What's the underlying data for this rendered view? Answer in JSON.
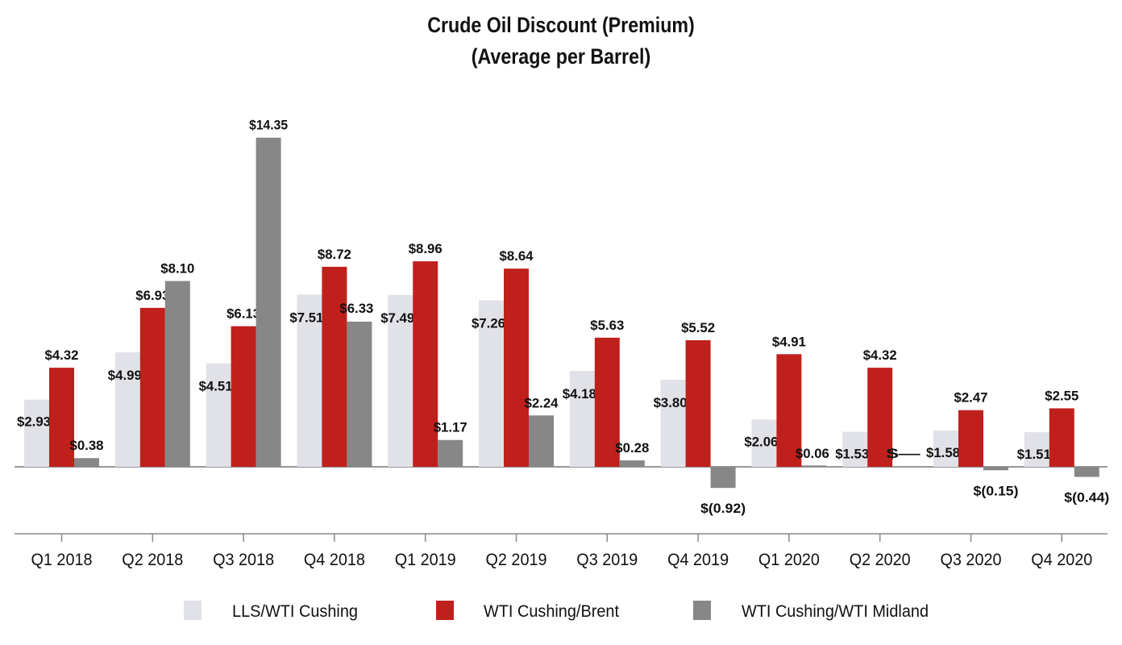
{
  "chart_data": {
    "type": "bar",
    "title": "Crude Oil Discount (Premium)",
    "subtitle": "(Average per Barrel)",
    "xlabel": "",
    "ylabel": "",
    "ylim": [
      -2,
      16
    ],
    "grid": false,
    "legend_position": "bottom",
    "categories": [
      "Q1 2018",
      "Q2 2018",
      "Q3 2018",
      "Q4 2018",
      "Q1 2019",
      "Q2 2019",
      "Q3 2019",
      "Q4 2019",
      "Q1 2020",
      "Q2 2020",
      "Q3 2020",
      "Q4 2020"
    ],
    "series": [
      {
        "name": "LLS/WTI Cushing",
        "color": "#e1e1e8",
        "values": [
          2.93,
          4.99,
          4.51,
          7.51,
          7.49,
          7.26,
          4.18,
          3.8,
          2.06,
          1.53,
          1.58,
          1.51
        ],
        "labels": [
          "$2.93",
          "$4.99",
          "$4.51",
          "$7.51",
          "$7.49",
          "$7.26",
          "$4.18",
          "$3.80",
          "$2.06",
          "$1.53",
          "$1.58",
          "$1.51"
        ]
      },
      {
        "name": "WTI Cushing/Brent",
        "color": "#c0201c",
        "values": [
          4.32,
          6.93,
          6.13,
          8.72,
          8.96,
          8.64,
          5.63,
          5.52,
          4.91,
          4.32,
          2.47,
          2.55
        ],
        "labels": [
          "$4.32",
          "$6.93",
          "$6.13",
          "$8.72",
          "$8.96",
          "$8.64",
          "$5.63",
          "$5.52",
          "$4.91",
          "$4.32",
          "$2.47",
          "$2.55"
        ]
      },
      {
        "name": "WTI Cushing/WTI Midland",
        "color": "#878787",
        "values": [
          0.38,
          8.1,
          14.35,
          6.33,
          1.17,
          2.24,
          0.28,
          -0.92,
          0.06,
          0,
          -0.15,
          -0.44
        ],
        "labels": [
          "$0.38",
          "$8.10",
          "$14.35",
          "$6.33",
          "$1.17",
          "$2.24",
          "$0.28",
          "$(0.92)",
          "$0.06",
          "$—",
          "$(0.15)",
          "$(0.44)"
        ]
      }
    ]
  }
}
